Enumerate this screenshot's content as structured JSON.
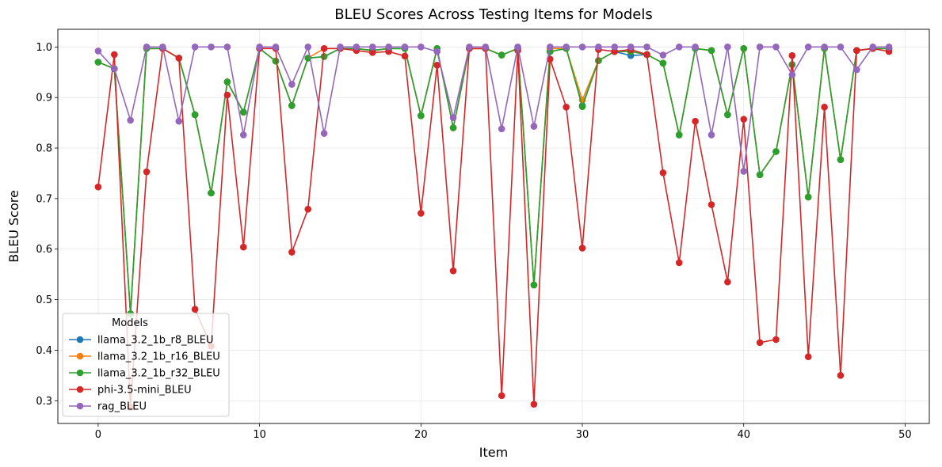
{
  "chart_data": {
    "type": "line",
    "title": "BLEU Scores Across Testing Items for Models",
    "xlabel": "Item",
    "ylabel": "BLEU Score",
    "xlim": [
      -2.5,
      51.5
    ],
    "ylim": [
      0.255,
      1.035
    ],
    "xticks": [
      0,
      10,
      20,
      30,
      40,
      50
    ],
    "yticks": [
      0.3,
      0.4,
      0.5,
      0.6,
      0.7,
      0.8,
      0.9,
      1.0
    ],
    "grid": true,
    "legend": {
      "title": "Models",
      "placement": "lower-left"
    },
    "markers": "circle",
    "x": [
      0,
      1,
      2,
      3,
      4,
      5,
      6,
      7,
      8,
      9,
      10,
      11,
      12,
      13,
      14,
      15,
      16,
      17,
      18,
      19,
      20,
      21,
      22,
      23,
      24,
      25,
      26,
      27,
      28,
      29,
      30,
      31,
      32,
      33,
      34,
      35,
      36,
      37,
      38,
      39,
      40,
      41,
      42,
      43,
      44,
      45,
      46,
      47,
      48,
      49
    ],
    "series": [
      {
        "name": "llama_3.2_1b_r8_BLEU",
        "color": "#1f77b4",
        "values": [
          0.97,
          0.957,
          0.472,
          0.997,
          0.997,
          0.978,
          0.866,
          0.711,
          0.931,
          0.871,
          0.997,
          0.972,
          0.884,
          0.978,
          0.981,
          0.997,
          0.997,
          0.993,
          0.997,
          0.997,
          0.864,
          0.997,
          0.84,
          0.997,
          0.997,
          0.984,
          0.997,
          0.529,
          0.991,
          0.997,
          0.884,
          0.973,
          0.991,
          0.983,
          0.985,
          0.968,
          0.826,
          0.997,
          0.993,
          0.866,
          0.997,
          0.747,
          0.793,
          0.965,
          0.703,
          0.997,
          0.777,
          0.993,
          0.997,
          0.997
        ]
      },
      {
        "name": "llama_3.2_1b_r16_BLEU",
        "color": "#ff7f0e",
        "values": [
          0.97,
          0.957,
          0.472,
          0.997,
          0.997,
          0.978,
          0.866,
          0.711,
          0.931,
          0.871,
          0.997,
          0.972,
          0.884,
          0.978,
          0.997,
          0.997,
          0.997,
          0.993,
          0.997,
          0.997,
          0.864,
          0.997,
          0.84,
          0.997,
          0.997,
          0.984,
          0.997,
          0.529,
          0.997,
          0.997,
          0.895,
          0.973,
          0.991,
          0.991,
          0.985,
          0.968,
          0.826,
          0.997,
          0.993,
          0.866,
          0.997,
          0.747,
          0.793,
          0.965,
          0.703,
          0.997,
          0.777,
          0.993,
          0.997,
          0.997
        ]
      },
      {
        "name": "llama_3.2_1b_r32_BLEU",
        "color": "#2ca02c",
        "values": [
          0.97,
          0.957,
          0.472,
          0.997,
          0.997,
          0.978,
          0.866,
          0.711,
          0.931,
          0.871,
          0.997,
          0.972,
          0.884,
          0.978,
          0.981,
          0.997,
          0.997,
          0.993,
          0.997,
          0.997,
          0.864,
          0.997,
          0.84,
          0.997,
          0.997,
          0.984,
          0.997,
          0.529,
          0.991,
          0.997,
          0.882,
          0.973,
          0.991,
          0.991,
          0.985,
          0.968,
          0.826,
          0.997,
          0.993,
          0.866,
          0.997,
          0.747,
          0.793,
          0.965,
          0.703,
          0.997,
          0.777,
          0.993,
          0.997,
          0.997
        ]
      },
      {
        "name": "phi-3.5-mini_BLEU",
        "color": "#d62728",
        "values": [
          0.723,
          0.985,
          0.287,
          0.753,
          0.997,
          0.978,
          0.481,
          0.408,
          0.905,
          0.604,
          0.997,
          0.997,
          0.594,
          0.679,
          0.997,
          0.997,
          0.993,
          0.989,
          0.991,
          0.982,
          0.671,
          0.964,
          0.557,
          0.997,
          0.997,
          0.31,
          0.993,
          0.293,
          0.976,
          0.881,
          0.602,
          0.995,
          0.991,
          0.995,
          0.985,
          0.751,
          0.573,
          0.853,
          0.688,
          0.535,
          0.857,
          0.415,
          0.421,
          0.983,
          0.387,
          0.881,
          0.35,
          0.993,
          0.997,
          0.991
        ]
      },
      {
        "name": "rag_BLEU",
        "color": "#9467bd",
        "values": [
          0.992,
          0.957,
          0.855,
          1.0,
          1.0,
          0.853,
          1.0,
          1.0,
          1.0,
          0.826,
          1.0,
          1.0,
          0.926,
          1.0,
          0.829,
          1.0,
          1.0,
          1.0,
          1.0,
          1.0,
          1.0,
          0.991,
          0.86,
          1.0,
          1.0,
          0.838,
          1.0,
          0.843,
          1.0,
          1.0,
          1.0,
          1.0,
          1.0,
          1.0,
          1.0,
          0.984,
          1.0,
          1.0,
          0.826,
          1.0,
          0.754,
          1.0,
          1.0,
          0.945,
          1.0,
          1.0,
          1.0,
          0.955,
          1.0,
          1.0
        ]
      }
    ]
  }
}
